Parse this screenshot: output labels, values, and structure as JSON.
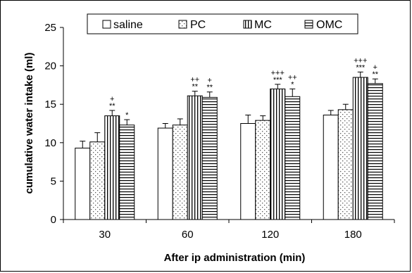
{
  "chart_data": {
    "type": "bar",
    "title": "",
    "xlabel": "After ip administration (min)",
    "ylabel": "cumulative water intake (ml)",
    "ylim": [
      0,
      25
    ],
    "yticks": [
      0,
      5,
      10,
      15,
      20,
      25
    ],
    "categories": [
      "30",
      "60",
      "120",
      "180"
    ],
    "legend": {
      "placement": "top"
    },
    "series": [
      {
        "name": "saline",
        "pattern": "white",
        "values": [
          9.3,
          11.9,
          12.5,
          13.6
        ],
        "errors": [
          0.9,
          0.6,
          1.1,
          0.6
        ],
        "annotations": [
          [],
          [],
          [],
          []
        ]
      },
      {
        "name": "PC",
        "pattern": "dotted",
        "values": [
          10.1,
          12.3,
          12.9,
          14.3
        ],
        "errors": [
          1.2,
          0.8,
          0.6,
          0.7
        ],
        "annotations": [
          [],
          [],
          [],
          []
        ]
      },
      {
        "name": "MC",
        "pattern": "vertical",
        "values": [
          13.5,
          16.1,
          17.0,
          18.5
        ],
        "errors": [
          0.7,
          0.6,
          0.6,
          0.7
        ],
        "annotations": [
          [
            "+",
            "**"
          ],
          [
            "++",
            "**"
          ],
          [
            "+++",
            "***"
          ],
          [
            "+++",
            "***"
          ]
        ]
      },
      {
        "name": "OMC",
        "pattern": "horizontal",
        "values": [
          12.3,
          15.9,
          16.0,
          17.7
        ],
        "errors": [
          0.7,
          0.7,
          1.0,
          0.6
        ],
        "annotations": [
          [
            "*"
          ],
          [
            "+",
            "**"
          ],
          [
            "++",
            "*"
          ],
          [
            "+",
            "**"
          ]
        ]
      }
    ]
  }
}
